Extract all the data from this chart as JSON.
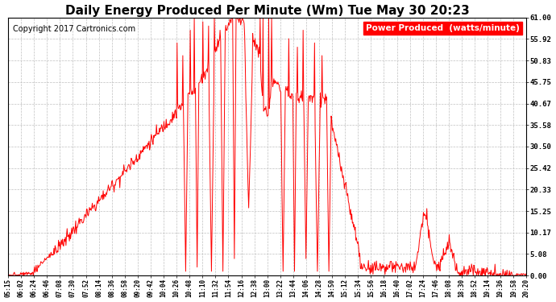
{
  "title": "Daily Energy Produced Per Minute (Wm) Tue May 30 20:23",
  "copyright": "Copyright 2017 Cartronics.com",
  "legend_label": "Power Produced  (watts/minute)",
  "ylabel_right_values": [
    61.0,
    55.92,
    50.83,
    45.75,
    40.67,
    35.58,
    30.5,
    25.42,
    20.33,
    15.25,
    10.17,
    5.08,
    0.0
  ],
  "ymax": 61.0,
  "ymin": 0.0,
  "line_color": "red",
  "background_color": "#ffffff",
  "grid_color": "#c0c0c0",
  "title_fontsize": 11,
  "copyright_fontsize": 7,
  "legend_fontsize": 7.5,
  "x_tick_labels": [
    "05:15",
    "06:02",
    "06:24",
    "06:46",
    "07:08",
    "07:30",
    "07:52",
    "08:14",
    "08:36",
    "08:58",
    "09:20",
    "09:42",
    "10:04",
    "10:26",
    "10:48",
    "11:10",
    "11:32",
    "11:54",
    "12:16",
    "12:38",
    "13:00",
    "13:22",
    "13:44",
    "14:06",
    "14:28",
    "14:50",
    "15:12",
    "15:34",
    "15:56",
    "16:18",
    "16:40",
    "17:02",
    "17:24",
    "17:46",
    "18:08",
    "18:30",
    "18:52",
    "19:14",
    "19:36",
    "19:58",
    "20:20"
  ]
}
